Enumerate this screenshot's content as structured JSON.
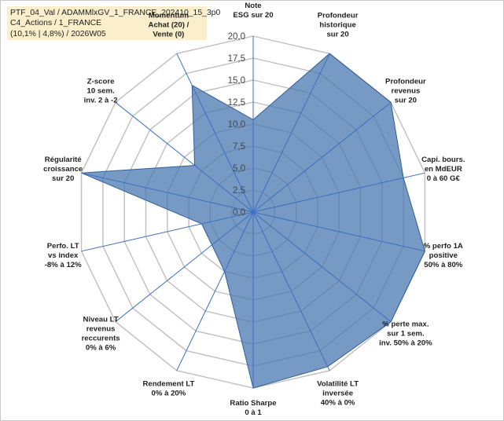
{
  "title_lines": [
    "PTF_04_Val / ADAMMlxGV_1_FRANCE_202410_15_3p0",
    "C4_Actions / 1_FRANCE",
    "(10,1% | 4,8%) / 2026W05"
  ],
  "colors": {
    "fill": "#4a78b0",
    "fill_opacity": "0.75",
    "stroke": "#2f5f9e",
    "grid": "#bfbfbf",
    "spoke": "#3a6fc4",
    "title_bg": "#fbeecb"
  },
  "chart_data": {
    "type": "radar",
    "title": "",
    "r_range": [
      0,
      20
    ],
    "tick_step": 2.5,
    "tick_labels": [
      "0,0",
      "2,5",
      "5,0",
      "7,5",
      "10,0",
      "12,5",
      "15,0",
      "17,5",
      "20,0"
    ],
    "axes": [
      {
        "label": [
          "Note",
          "ESG sur 20"
        ],
        "value": 10.5
      },
      {
        "label": [
          "Profondeur",
          "historique",
          "sur 20"
        ],
        "value": 20
      },
      {
        "label": [
          "Profondeur",
          "revenus",
          "sur 20"
        ],
        "value": 20
      },
      {
        "label": [
          "Capi. bours.",
          "en MdEUR",
          "0 à 60 G€"
        ],
        "value": 17.5
      },
      {
        "label": [
          "% perfo 1A",
          "positive",
          "50% à 80%"
        ],
        "value": 20
      },
      {
        "label": [
          "% perte max.",
          "sur 1 sem.",
          "inv. 50% à 20%"
        ],
        "value": 20
      },
      {
        "label": [
          "Volatilité LT",
          "inversée",
          "40% à 0%"
        ],
        "value": 19.5
      },
      {
        "label": [
          "Ratio Sharpe",
          "0 à 1"
        ],
        "value": 20
      },
      {
        "label": [
          "Rendement LT",
          "0% à 20%"
        ],
        "value": 7.5
      },
      {
        "label": [
          "Niveau LT",
          "revenus",
          "reccurents",
          "0% à 6%"
        ],
        "value": 6
      },
      {
        "label": [
          "Perfo. LT",
          "vs index",
          "-8% à 12%"
        ],
        "value": 6
      },
      {
        "label": [
          "Régularité",
          "croissance",
          "sur 20"
        ],
        "value": 20
      },
      {
        "label": [
          "Z-score",
          "10 sem.",
          "inv. 2 à -2"
        ],
        "value": 8.5
      },
      {
        "label": [
          "Momentum",
          "Achat (20) /",
          "Vente (0)"
        ],
        "value": 16
      }
    ]
  }
}
